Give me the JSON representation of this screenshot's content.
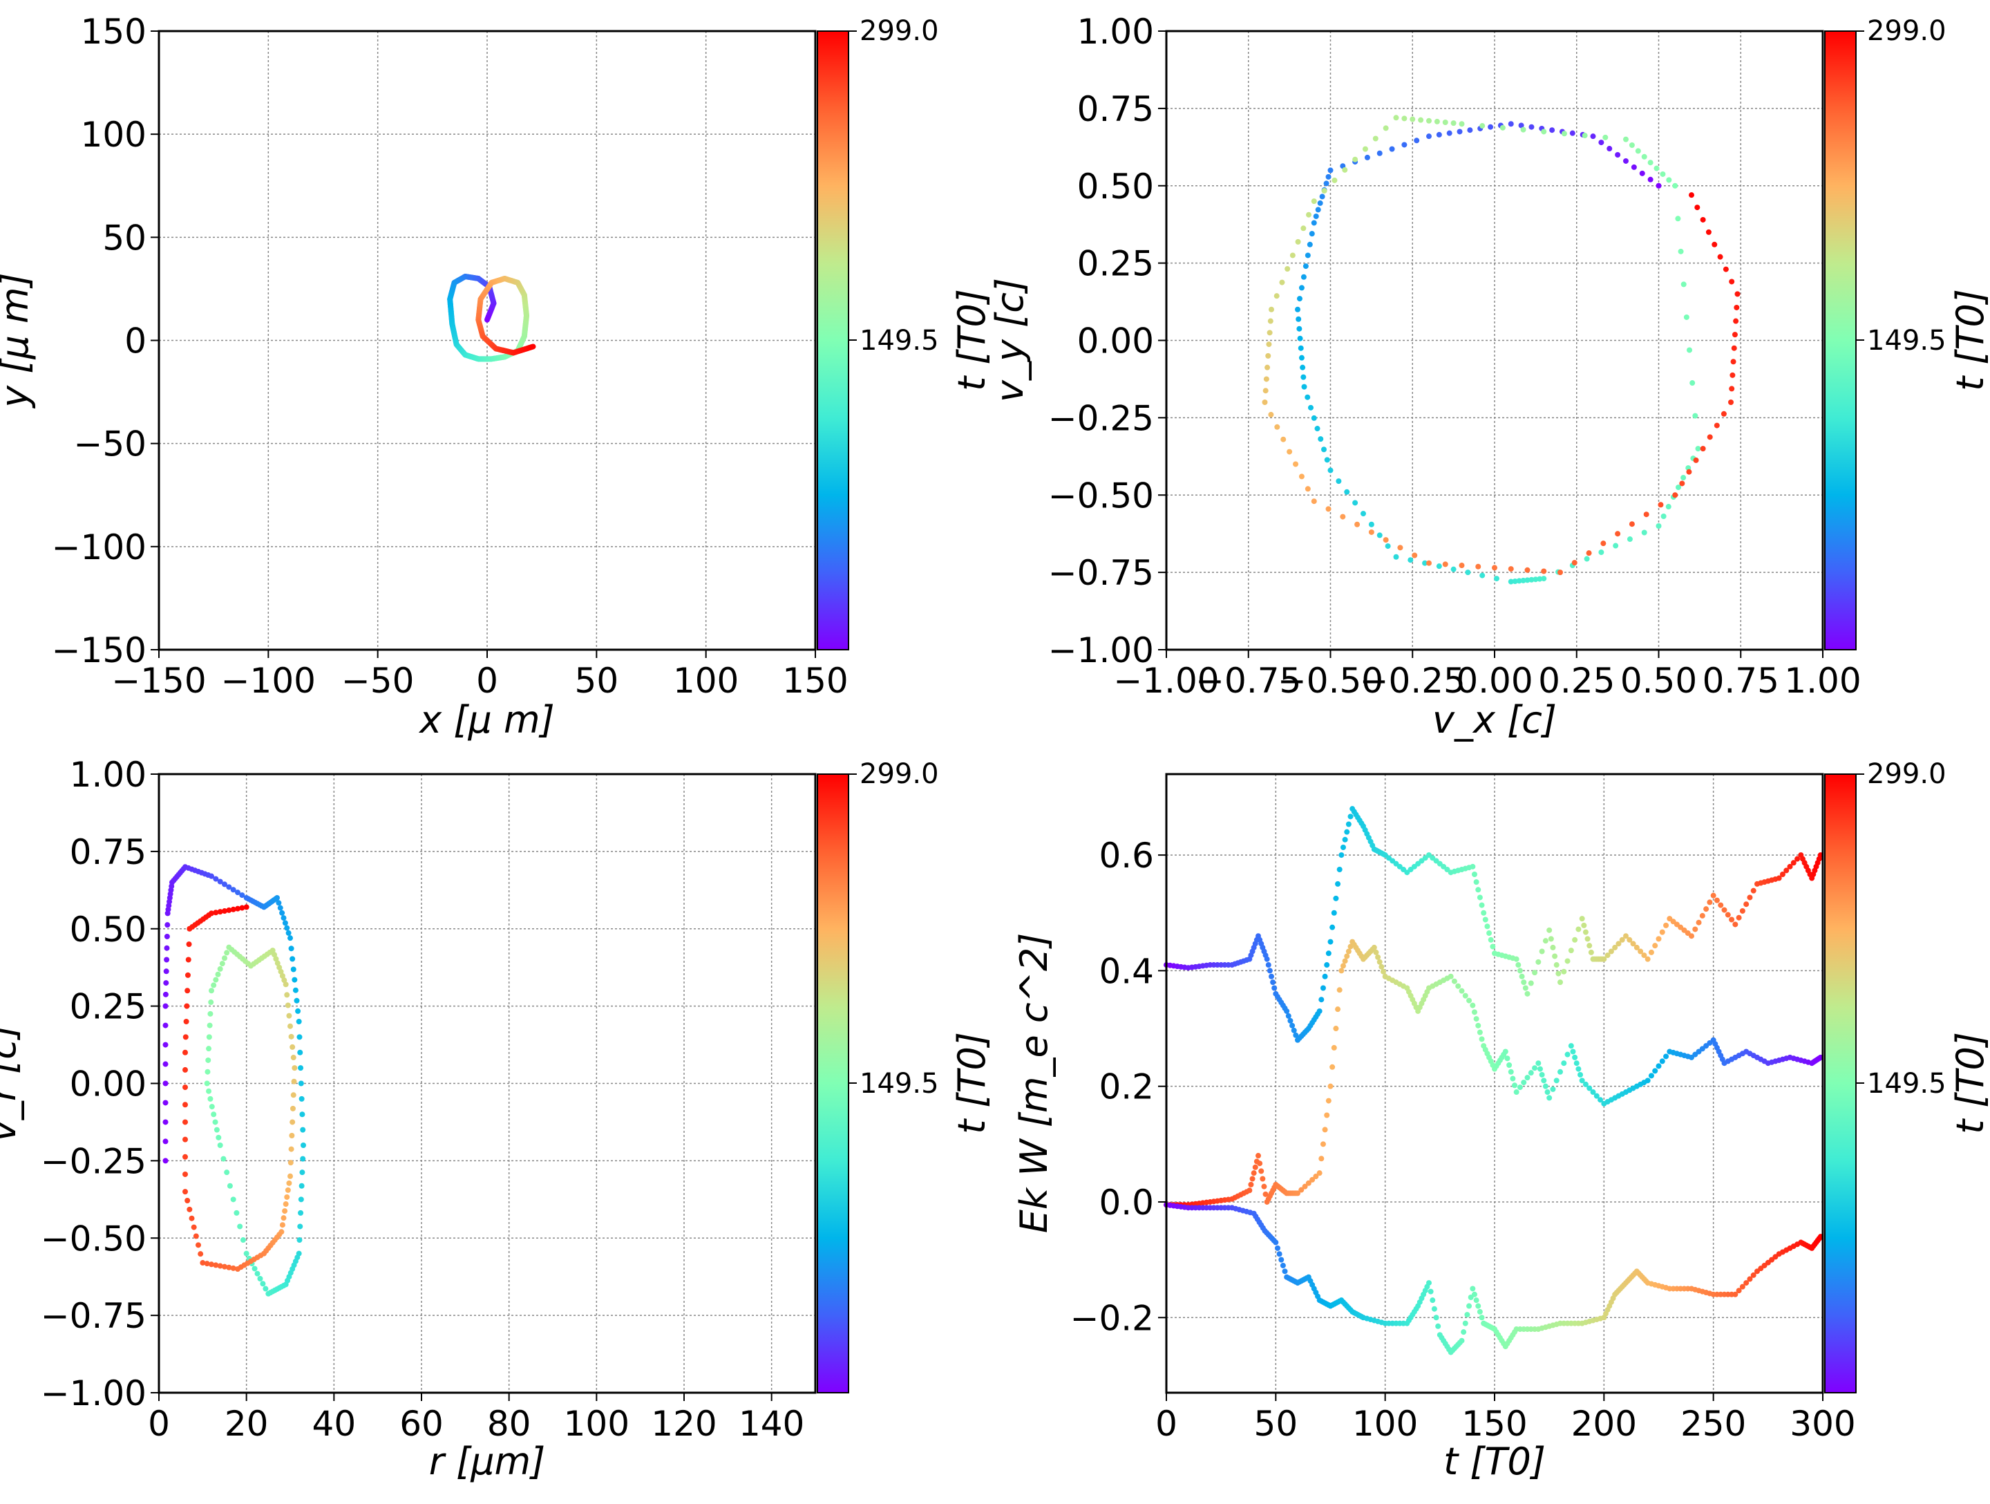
{
  "colorbar": {
    "top_label": "299.0",
    "mid_label": "149.5",
    "vmin": 0,
    "vmax": 299.0,
    "label": "t [T0]",
    "colormap": "rainbow"
  },
  "chart_data": [
    {
      "type": "line",
      "panel": "top-left",
      "xlabel": "x  [μ m]",
      "ylabel": "y  [μ m]",
      "xlim": [
        -150,
        150
      ],
      "ylim": [
        -150,
        150
      ],
      "xticks": [
        -150,
        -100,
        -50,
        0,
        50,
        100,
        150
      ],
      "yticks": [
        -150,
        -100,
        -50,
        0,
        50,
        100,
        150
      ],
      "xtick_labels": [
        "−150",
        "−100",
        "−50",
        "0",
        "50",
        "100",
        "150"
      ],
      "ytick_labels": [
        "−150",
        "−100",
        "−50",
        "0",
        "50",
        "100",
        "150"
      ],
      "grid": true,
      "colorbar_label": "t [T0]",
      "points": [
        {
          "t": 0,
          "x": 0,
          "y": 10
        },
        {
          "t": 12,
          "x": 3,
          "y": 18
        },
        {
          "t": 24,
          "x": 1,
          "y": 26
        },
        {
          "t": 36,
          "x": -4,
          "y": 30
        },
        {
          "t": 48,
          "x": -10,
          "y": 31
        },
        {
          "t": 60,
          "x": -15,
          "y": 28
        },
        {
          "t": 72,
          "x": -17,
          "y": 20
        },
        {
          "t": 84,
          "x": -16,
          "y": 8
        },
        {
          "t": 96,
          "x": -14,
          "y": -2
        },
        {
          "t": 108,
          "x": -10,
          "y": -7
        },
        {
          "t": 120,
          "x": -4,
          "y": -9
        },
        {
          "t": 132,
          "x": 2,
          "y": -9
        },
        {
          "t": 144,
          "x": 8,
          "y": -8
        },
        {
          "t": 156,
          "x": 14,
          "y": -5
        },
        {
          "t": 168,
          "x": 17,
          "y": 2
        },
        {
          "t": 180,
          "x": 18,
          "y": 12
        },
        {
          "t": 192,
          "x": 17,
          "y": 22
        },
        {
          "t": 204,
          "x": 14,
          "y": 28
        },
        {
          "t": 216,
          "x": 8,
          "y": 30
        },
        {
          "t": 228,
          "x": 2,
          "y": 28
        },
        {
          "t": 240,
          "x": -3,
          "y": 20
        },
        {
          "t": 252,
          "x": -4,
          "y": 10
        },
        {
          "t": 264,
          "x": -2,
          "y": 2
        },
        {
          "t": 276,
          "x": 4,
          "y": -4
        },
        {
          "t": 288,
          "x": 12,
          "y": -6
        },
        {
          "t": 299,
          "x": 21,
          "y": -3
        }
      ]
    },
    {
      "type": "scatter",
      "panel": "top-right",
      "xlabel": "v_x [c]",
      "ylabel": "v_y [c]",
      "xlim": [
        -1.0,
        1.0
      ],
      "ylim": [
        -1.0,
        1.0
      ],
      "xticks": [
        -1.0,
        -0.75,
        -0.5,
        -0.25,
        0.0,
        0.25,
        0.5,
        0.75,
        1.0
      ],
      "yticks": [
        -1.0,
        -0.75,
        -0.5,
        -0.25,
        0.0,
        0.25,
        0.5,
        0.75,
        1.0
      ],
      "xtick_labels": [
        "−1.00",
        "−0.75",
        "−0.50",
        "−0.25",
        "0.00",
        "0.25",
        "0.50",
        "0.75",
        "1.00"
      ],
      "ytick_labels": [
        "−1.00",
        "−0.75",
        "−0.50",
        "−0.25",
        "0.00",
        "0.25",
        "0.50",
        "0.75",
        "1.00"
      ],
      "grid": true,
      "colorbar_label": "t [T0]",
      "points": [
        {
          "t": 0,
          "vx": 0.5,
          "vy": 0.5
        },
        {
          "t": 15,
          "vx": 0.3,
          "vy": 0.66
        },
        {
          "t": 30,
          "vx": 0.05,
          "vy": 0.7
        },
        {
          "t": 40,
          "vx": -0.2,
          "vy": 0.66
        },
        {
          "t": 50,
          "vx": -0.5,
          "vy": 0.55
        },
        {
          "t": 60,
          "vx": -0.55,
          "vy": 0.38
        },
        {
          "t": 70,
          "vx": -0.6,
          "vy": 0.1
        },
        {
          "t": 80,
          "vx": -0.58,
          "vy": -0.15
        },
        {
          "t": 90,
          "vx": -0.5,
          "vy": -0.42
        },
        {
          "t": 100,
          "vx": -0.3,
          "vy": -0.7
        },
        {
          "t": 110,
          "vx": 0.05,
          "vy": -0.78
        },
        {
          "t": 120,
          "vx": 0.15,
          "vy": -0.77
        },
        {
          "t": 130,
          "vx": 0.5,
          "vy": -0.6
        },
        {
          "t": 140,
          "vx": 0.62,
          "vy": -0.35
        },
        {
          "t": 150,
          "vx": 0.55,
          "vy": 0.5
        },
        {
          "t": 160,
          "vx": 0.4,
          "vy": 0.65
        },
        {
          "t": 170,
          "vx": -0.1,
          "vy": 0.7
        },
        {
          "t": 180,
          "vx": -0.3,
          "vy": 0.72
        },
        {
          "t": 190,
          "vx": -0.55,
          "vy": 0.45
        },
        {
          "t": 200,
          "vx": -0.68,
          "vy": 0.1
        },
        {
          "t": 215,
          "vx": -0.7,
          "vy": -0.2
        },
        {
          "t": 230,
          "vx": -0.55,
          "vy": -0.52
        },
        {
          "t": 245,
          "vx": -0.2,
          "vy": -0.72
        },
        {
          "t": 258,
          "vx": 0.2,
          "vy": -0.75
        },
        {
          "t": 270,
          "vx": 0.55,
          "vy": -0.5
        },
        {
          "t": 280,
          "vx": 0.72,
          "vy": -0.2
        },
        {
          "t": 290,
          "vx": 0.74,
          "vy": 0.15
        },
        {
          "t": 299,
          "vx": 0.6,
          "vy": 0.47
        }
      ]
    },
    {
      "type": "scatter",
      "panel": "bottom-left",
      "xlabel": "r [μm]",
      "ylabel": "v_r [c]",
      "xlim": [
        0,
        150
      ],
      "ylim": [
        -1.0,
        1.0
      ],
      "xticks": [
        0,
        20,
        40,
        60,
        80,
        100,
        120,
        140
      ],
      "yticks": [
        -1.0,
        -0.75,
        -0.5,
        -0.25,
        0.0,
        0.25,
        0.5,
        0.75,
        1.0
      ],
      "xtick_labels": [
        "0",
        "20",
        "40",
        "60",
        "80",
        "100",
        "120",
        "140"
      ],
      "ytick_labels": [
        "−1.00",
        "−0.75",
        "−0.50",
        "−0.25",
        "0.00",
        "0.25",
        "0.50",
        "0.75",
        "1.00"
      ],
      "grid": true,
      "colorbar_label": "t [T0]",
      "points": [
        {
          "t": 0,
          "r": 1.5,
          "vr": -0.25
        },
        {
          "t": 4,
          "r": 1.5,
          "vr": 0.25
        },
        {
          "t": 8,
          "r": 2,
          "vr": 0.55
        },
        {
          "t": 12,
          "r": 3,
          "vr": 0.65
        },
        {
          "t": 18,
          "r": 6,
          "vr": 0.7
        },
        {
          "t": 30,
          "r": 12,
          "vr": 0.67
        },
        {
          "t": 45,
          "r": 20,
          "vr": 0.6
        },
        {
          "t": 55,
          "r": 24,
          "vr": 0.57
        },
        {
          "t": 62,
          "r": 27,
          "vr": 0.6
        },
        {
          "t": 70,
          "r": 30,
          "vr": 0.47
        },
        {
          "t": 80,
          "r": 32,
          "vr": 0.2
        },
        {
          "t": 90,
          "r": 33,
          "vr": -0.2
        },
        {
          "t": 100,
          "r": 32,
          "vr": -0.55
        },
        {
          "t": 110,
          "r": 29,
          "vr": -0.65
        },
        {
          "t": 120,
          "r": 25,
          "vr": -0.68
        },
        {
          "t": 130,
          "r": 20,
          "vr": -0.55
        },
        {
          "t": 140,
          "r": 14,
          "vr": -0.2
        },
        {
          "t": 150,
          "r": 11,
          "vr": 0.0
        },
        {
          "t": 160,
          "r": 12,
          "vr": 0.3
        },
        {
          "t": 170,
          "r": 16,
          "vr": 0.44
        },
        {
          "t": 180,
          "r": 21,
          "vr": 0.38
        },
        {
          "t": 190,
          "r": 26,
          "vr": 0.43
        },
        {
          "t": 200,
          "r": 29,
          "vr": 0.32
        },
        {
          "t": 210,
          "r": 31,
          "vr": 0.05
        },
        {
          "t": 220,
          "r": 30,
          "vr": -0.3
        },
        {
          "t": 232,
          "r": 28,
          "vr": -0.48
        },
        {
          "t": 244,
          "r": 24,
          "vr": -0.55
        },
        {
          "t": 255,
          "r": 18,
          "vr": -0.6
        },
        {
          "t": 264,
          "r": 10,
          "vr": -0.58
        },
        {
          "t": 272,
          "r": 6,
          "vr": -0.35
        },
        {
          "t": 280,
          "r": 6,
          "vr": 0.1
        },
        {
          "t": 287,
          "r": 7,
          "vr": 0.5
        },
        {
          "t": 293,
          "r": 12,
          "vr": 0.55
        },
        {
          "t": 299,
          "r": 20,
          "vr": 0.57
        }
      ]
    },
    {
      "type": "scatter",
      "panel": "bottom-right",
      "xlabel": "t [T0]",
      "ylabel": "Ek W [m_e c^2]",
      "xlim": [
        0,
        300
      ],
      "ylim": [
        -0.33,
        0.74
      ],
      "xticks": [
        0,
        50,
        100,
        150,
        200,
        250,
        300
      ],
      "yticks": [
        -0.2,
        0.0,
        0.2,
        0.4,
        0.6
      ],
      "xtick_labels": [
        "0",
        "50",
        "100",
        "150",
        "200",
        "250",
        "300"
      ],
      "ytick_labels": [
        "−0.2",
        "0.0",
        "0.2",
        "0.4",
        "0.6"
      ],
      "grid": true,
      "colorbar_label": "t [T0]",
      "series": [
        {
          "color_mode": "time",
          "points": [
            [
              0,
              0.41
            ],
            [
              10,
              0.405
            ],
            [
              20,
              0.41
            ],
            [
              30,
              0.41
            ],
            [
              38,
              0.42
            ],
            [
              42,
              0.46
            ],
            [
              46,
              0.42
            ],
            [
              50,
              0.36
            ],
            [
              55,
              0.33
            ],
            [
              60,
              0.28
            ],
            [
              65,
              0.3
            ],
            [
              70,
              0.33
            ],
            [
              75,
              0.45
            ],
            [
              80,
              0.6
            ],
            [
              85,
              0.68
            ],
            [
              90,
              0.65
            ],
            [
              95,
              0.61
            ],
            [
              100,
              0.6
            ],
            [
              110,
              0.57
            ],
            [
              120,
              0.6
            ],
            [
              130,
              0.57
            ],
            [
              140,
              0.58
            ],
            [
              145,
              0.5
            ],
            [
              150,
              0.43
            ],
            [
              160,
              0.42
            ],
            [
              165,
              0.36
            ],
            [
              175,
              0.47
            ],
            [
              180,
              0.38
            ],
            [
              190,
              0.49
            ],
            [
              195,
              0.42
            ],
            [
              200,
              0.42
            ],
            [
              210,
              0.46
            ],
            [
              220,
              0.42
            ],
            [
              230,
              0.49
            ],
            [
              240,
              0.46
            ],
            [
              250,
              0.53
            ],
            [
              260,
              0.48
            ],
            [
              270,
              0.55
            ],
            [
              280,
              0.56
            ],
            [
              290,
              0.6
            ],
            [
              295,
              0.56
            ],
            [
              299,
              0.6
            ]
          ]
        },
        {
          "color_mode": "time-reversed",
          "points": [
            [
              0,
              -0.005
            ],
            [
              10,
              -0.005
            ],
            [
              20,
              0.0
            ],
            [
              30,
              0.005
            ],
            [
              38,
              0.02
            ],
            [
              42,
              0.08
            ],
            [
              46,
              0.0
            ],
            [
              50,
              0.03
            ],
            [
              55,
              0.015
            ],
            [
              60,
              0.015
            ],
            [
              70,
              0.05
            ],
            [
              75,
              0.2
            ],
            [
              80,
              0.4
            ],
            [
              85,
              0.45
            ],
            [
              90,
              0.42
            ],
            [
              95,
              0.44
            ],
            [
              100,
              0.39
            ],
            [
              110,
              0.37
            ],
            [
              115,
              0.33
            ],
            [
              120,
              0.37
            ],
            [
              130,
              0.39
            ],
            [
              140,
              0.34
            ],
            [
              145,
              0.27
            ],
            [
              150,
              0.23
            ],
            [
              155,
              0.26
            ],
            [
              160,
              0.19
            ],
            [
              170,
              0.24
            ],
            [
              175,
              0.18
            ],
            [
              185,
              0.27
            ],
            [
              190,
              0.21
            ],
            [
              200,
              0.17
            ],
            [
              210,
              0.19
            ],
            [
              220,
              0.21
            ],
            [
              230,
              0.26
            ],
            [
              240,
              0.25
            ],
            [
              250,
              0.28
            ],
            [
              255,
              0.24
            ],
            [
              265,
              0.26
            ],
            [
              275,
              0.24
            ],
            [
              285,
              0.25
            ],
            [
              295,
              0.24
            ],
            [
              299,
              0.25
            ]
          ]
        },
        {
          "color_mode": "time",
          "points": [
            [
              0,
              -0.005
            ],
            [
              10,
              -0.01
            ],
            [
              20,
              -0.01
            ],
            [
              30,
              -0.01
            ],
            [
              40,
              -0.02
            ],
            [
              45,
              -0.05
            ],
            [
              50,
              -0.07
            ],
            [
              55,
              -0.13
            ],
            [
              60,
              -0.14
            ],
            [
              65,
              -0.13
            ],
            [
              70,
              -0.17
            ],
            [
              75,
              -0.18
            ],
            [
              80,
              -0.17
            ],
            [
              85,
              -0.19
            ],
            [
              90,
              -0.2
            ],
            [
              100,
              -0.21
            ],
            [
              110,
              -0.21
            ],
            [
              115,
              -0.18
            ],
            [
              120,
              -0.14
            ],
            [
              125,
              -0.23
            ],
            [
              130,
              -0.26
            ],
            [
              135,
              -0.24
            ],
            [
              140,
              -0.15
            ],
            [
              145,
              -0.21
            ],
            [
              150,
              -0.22
            ],
            [
              155,
              -0.25
            ],
            [
              160,
              -0.22
            ],
            [
              170,
              -0.22
            ],
            [
              180,
              -0.21
            ],
            [
              190,
              -0.21
            ],
            [
              200,
              -0.2
            ],
            [
              205,
              -0.16
            ],
            [
              210,
              -0.14
            ],
            [
              215,
              -0.12
            ],
            [
              220,
              -0.14
            ],
            [
              230,
              -0.15
            ],
            [
              240,
              -0.15
            ],
            [
              250,
              -0.16
            ],
            [
              260,
              -0.16
            ],
            [
              270,
              -0.12
            ],
            [
              280,
              -0.09
            ],
            [
              290,
              -0.07
            ],
            [
              295,
              -0.08
            ],
            [
              299,
              -0.06
            ]
          ]
        }
      ]
    }
  ]
}
